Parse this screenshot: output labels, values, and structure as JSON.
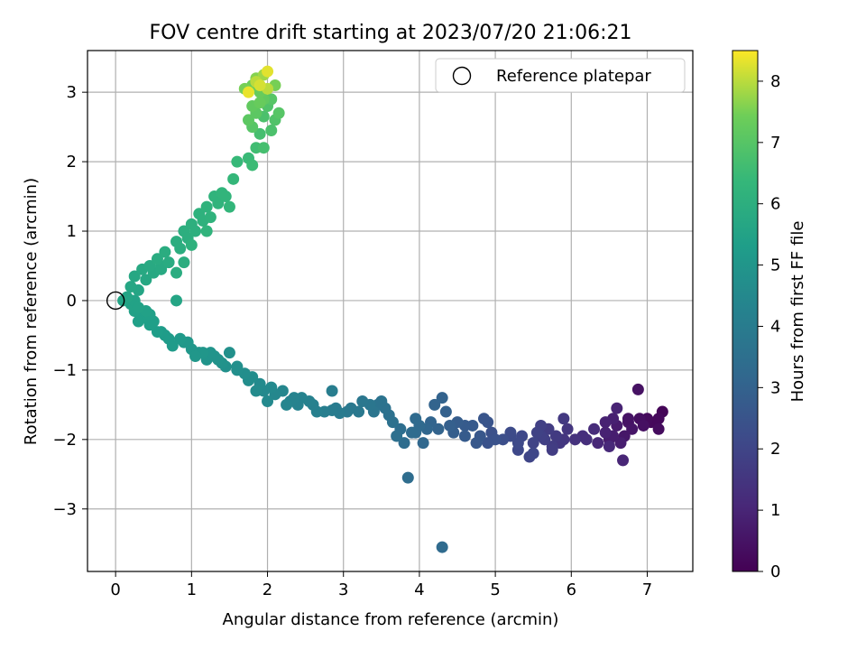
{
  "chart_data": {
    "type": "scatter",
    "title": "FOV centre drift starting at 2023/07/20 21:06:21",
    "xlabel": "Angular distance from reference (arcmin)",
    "ylabel": "Rotation from reference (arcmin)",
    "xlim": [
      -0.37,
      7.6
    ],
    "ylim": [
      -3.9,
      3.6
    ],
    "xticks": [
      0,
      1,
      2,
      3,
      4,
      5,
      6,
      7
    ],
    "yticks": [
      -3,
      -2,
      -1,
      0,
      1,
      2,
      3
    ],
    "grid": true,
    "legend": {
      "placement": "top-right",
      "entries": [
        "Reference platepar"
      ]
    },
    "colorbar": {
      "label": "Hours from first FF file",
      "range": [
        0,
        8.5
      ],
      "ticks": [
        0,
        1,
        2,
        3,
        4,
        5,
        6,
        7,
        8
      ],
      "colormap": "viridis"
    },
    "reference_point": {
      "x": 0,
      "y": 0
    },
    "series": [
      {
        "values_note": "columns: x (arcmin), y (arcmin), hours",
        "points": [
          [
            7.2,
            -1.6,
            0.1
          ],
          [
            7.15,
            -1.7,
            0.2
          ],
          [
            7.15,
            -1.85,
            0.3
          ],
          [
            6.9,
            -1.7,
            0.35
          ],
          [
            6.95,
            -1.8,
            0.4
          ],
          [
            6.88,
            -1.28,
            0.45
          ],
          [
            6.75,
            -1.75,
            0.5
          ],
          [
            6.7,
            -1.95,
            0.6
          ],
          [
            6.6,
            -1.8,
            0.7
          ],
          [
            6.5,
            -2.0,
            0.75
          ],
          [
            6.65,
            -2.05,
            0.8
          ],
          [
            6.55,
            -1.7,
            0.85
          ],
          [
            6.45,
            -1.75,
            0.9
          ],
          [
            6.6,
            -1.55,
            0.95
          ],
          [
            6.68,
            -2.3,
            1.0
          ],
          [
            6.35,
            -2.05,
            1.05
          ],
          [
            6.5,
            -2.1,
            1.1
          ],
          [
            6.3,
            -1.85,
            1.2
          ],
          [
            6.2,
            -2.0,
            1.3
          ],
          [
            6.05,
            -2.0,
            1.4
          ],
          [
            5.95,
            -1.85,
            1.5
          ],
          [
            5.85,
            -2.05,
            1.55
          ],
          [
            5.9,
            -1.7,
            1.6
          ],
          [
            5.8,
            -1.95,
            1.65
          ],
          [
            5.7,
            -1.85,
            1.7
          ],
          [
            5.75,
            -2.15,
            1.75
          ],
          [
            5.65,
            -2.0,
            1.8
          ],
          [
            5.6,
            -1.8,
            1.85
          ],
          [
            5.55,
            -1.9,
            1.9
          ],
          [
            5.5,
            -2.05,
            1.95
          ],
          [
            5.45,
            -2.25,
            2.0
          ],
          [
            5.5,
            -2.2,
            2.05
          ],
          [
            5.35,
            -1.95,
            2.1
          ],
          [
            5.3,
            -2.05,
            2.15
          ],
          [
            5.2,
            -1.95,
            2.2
          ],
          [
            5.1,
            -2.0,
            2.3
          ],
          [
            4.95,
            -1.9,
            2.4
          ],
          [
            5.0,
            -2.0,
            2.45
          ],
          [
            4.9,
            -1.75,
            2.5
          ],
          [
            4.85,
            -1.7,
            2.55
          ],
          [
            4.8,
            -1.95,
            2.6
          ],
          [
            4.75,
            -2.05,
            2.65
          ],
          [
            4.7,
            -1.8,
            2.7
          ],
          [
            4.6,
            -1.8,
            2.75
          ],
          [
            4.5,
            -1.75,
            2.8
          ],
          [
            4.4,
            -1.8,
            2.9
          ],
          [
            4.35,
            -1.6,
            2.95
          ],
          [
            4.3,
            -1.4,
            3.0
          ],
          [
            4.2,
            -1.5,
            3.05
          ],
          [
            4.15,
            -1.75,
            3.1
          ],
          [
            4.1,
            -1.85,
            3.15
          ],
          [
            4.05,
            -2.05,
            3.2
          ],
          [
            4.0,
            -1.8,
            3.25
          ],
          [
            3.95,
            -1.7,
            3.3
          ],
          [
            3.9,
            -1.9,
            3.35
          ],
          [
            3.8,
            -2.05,
            3.4
          ],
          [
            3.75,
            -1.85,
            3.45
          ],
          [
            3.7,
            -1.95,
            3.5
          ],
          [
            3.6,
            -1.65,
            3.55
          ],
          [
            3.55,
            -1.55,
            3.6
          ],
          [
            3.5,
            -1.45,
            3.65
          ],
          [
            3.4,
            -1.6,
            3.7
          ],
          [
            3.35,
            -1.5,
            3.75
          ],
          [
            3.25,
            -1.45,
            3.8
          ],
          [
            3.2,
            -1.6,
            3.85
          ],
          [
            3.05,
            -1.6,
            3.9
          ],
          [
            2.95,
            -1.62,
            3.95
          ],
          [
            2.85,
            -1.58,
            4.0
          ],
          [
            2.85,
            -1.3,
            4.05
          ],
          [
            2.75,
            -1.6,
            4.1
          ],
          [
            2.65,
            -1.6,
            4.15
          ],
          [
            2.55,
            -1.45,
            4.2
          ],
          [
            2.45,
            -1.4,
            4.25
          ],
          [
            2.35,
            -1.4,
            4.3
          ],
          [
            2.25,
            -1.5,
            4.35
          ],
          [
            2.2,
            -1.3,
            4.4
          ],
          [
            2.1,
            -1.35,
            4.45
          ],
          [
            2.0,
            -1.45,
            4.5
          ],
          [
            1.9,
            -1.2,
            4.55
          ],
          [
            1.85,
            -1.3,
            4.6
          ],
          [
            1.8,
            -1.1,
            4.65
          ],
          [
            1.7,
            -1.05,
            4.7
          ],
          [
            1.6,
            -0.95,
            4.75
          ],
          [
            1.5,
            -0.75,
            4.8
          ],
          [
            1.4,
            -0.9,
            4.85
          ],
          [
            1.3,
            -0.8,
            4.9
          ],
          [
            1.2,
            -0.85,
            4.95
          ],
          [
            1.1,
            -0.75,
            5.0
          ],
          [
            1.0,
            -0.7,
            5.05
          ],
          [
            0.95,
            -0.6,
            5.1
          ],
          [
            0.85,
            -0.55,
            5.15
          ],
          [
            0.75,
            -0.65,
            5.2
          ],
          [
            0.65,
            -0.5,
            5.25
          ],
          [
            0.55,
            -0.45,
            5.3
          ],
          [
            0.45,
            -0.35,
            5.35
          ],
          [
            0.35,
            -0.25,
            5.4
          ],
          [
            0.25,
            -0.15,
            5.45
          ],
          [
            0.2,
            -0.05,
            5.5
          ],
          [
            0.15,
            0.05,
            5.55
          ],
          [
            0.8,
            0.0,
            5.6
          ],
          [
            0.2,
            0.2,
            5.65
          ],
          [
            0.25,
            0.35,
            5.7
          ],
          [
            0.35,
            0.45,
            5.75
          ],
          [
            0.45,
            0.5,
            5.8
          ],
          [
            0.55,
            0.6,
            5.85
          ],
          [
            0.65,
            0.7,
            5.9
          ],
          [
            0.8,
            0.85,
            5.95
          ],
          [
            0.9,
            1.0,
            6.0
          ],
          [
            1.0,
            1.1,
            6.05
          ],
          [
            1.1,
            1.25,
            6.1
          ],
          [
            1.2,
            1.35,
            6.15
          ],
          [
            1.3,
            1.5,
            6.2
          ],
          [
            1.4,
            1.55,
            6.25
          ],
          [
            1.5,
            1.35,
            6.3
          ],
          [
            1.55,
            1.75,
            6.35
          ],
          [
            1.6,
            2.0,
            6.4
          ],
          [
            1.75,
            2.05,
            6.45
          ],
          [
            1.8,
            1.95,
            6.5
          ],
          [
            1.85,
            2.2,
            6.6
          ],
          [
            1.9,
            2.4,
            6.7
          ],
          [
            1.95,
            2.65,
            6.8
          ],
          [
            2.0,
            2.8,
            6.9
          ],
          [
            2.05,
            2.9,
            7.0
          ],
          [
            1.75,
            2.6,
            7.1
          ],
          [
            1.8,
            2.8,
            7.2
          ],
          [
            1.9,
            3.0,
            7.3
          ],
          [
            1.8,
            3.1,
            7.4
          ],
          [
            1.7,
            3.05,
            7.5
          ],
          [
            1.85,
            3.2,
            7.6
          ],
          [
            1.95,
            3.25,
            7.8
          ],
          [
            2.0,
            3.05,
            8.0
          ],
          [
            1.9,
            3.1,
            8.2
          ],
          [
            2.0,
            3.3,
            8.3
          ],
          [
            1.75,
            3.0,
            8.35
          ],
          [
            3.85,
            -2.55,
            3.4
          ],
          [
            4.3,
            -3.55,
            3.3
          ],
          [
            6.8,
            -1.85,
            0.55
          ],
          [
            7.0,
            -1.7,
            0.25
          ],
          [
            6.45,
            -1.9,
            0.9
          ],
          [
            5.9,
            -2.0,
            1.5
          ],
          [
            5.6,
            -1.95,
            1.85
          ],
          [
            5.2,
            -1.9,
            2.2
          ],
          [
            4.9,
            -2.05,
            2.45
          ],
          [
            4.6,
            -1.95,
            2.75
          ],
          [
            4.25,
            -1.85,
            3.05
          ],
          [
            3.65,
            -1.75,
            3.55
          ],
          [
            3.1,
            -1.55,
            3.85
          ],
          [
            2.6,
            -1.5,
            4.15
          ],
          [
            2.3,
            -1.45,
            4.3
          ],
          [
            2.05,
            -1.25,
            4.5
          ],
          [
            1.75,
            -1.15,
            4.65
          ],
          [
            1.45,
            -0.95,
            4.8
          ],
          [
            1.25,
            -0.75,
            4.95
          ],
          [
            1.05,
            -0.8,
            5.05
          ],
          [
            0.7,
            -0.55,
            5.2
          ],
          [
            0.5,
            -0.3,
            5.35
          ],
          [
            0.3,
            -0.3,
            5.4
          ],
          [
            0.4,
            -0.15,
            5.45
          ],
          [
            0.25,
            0.0,
            5.5
          ],
          [
            0.1,
            0.0,
            5.55
          ],
          [
            0.3,
            0.15,
            5.6
          ],
          [
            0.4,
            0.3,
            5.7
          ],
          [
            0.5,
            0.4,
            5.75
          ],
          [
            0.6,
            0.5,
            5.8
          ],
          [
            0.7,
            0.55,
            5.85
          ],
          [
            0.85,
            0.75,
            5.95
          ],
          [
            0.95,
            0.9,
            6.0
          ],
          [
            1.05,
            1.0,
            6.05
          ],
          [
            1.15,
            1.15,
            6.1
          ],
          [
            1.25,
            1.2,
            6.15
          ],
          [
            1.35,
            1.4,
            6.2
          ],
          [
            1.45,
            1.5,
            6.25
          ],
          [
            1.2,
            1.0,
            6.2
          ],
          [
            1.0,
            0.8,
            6.1
          ],
          [
            0.6,
            0.45,
            5.8
          ],
          [
            0.8,
            0.4,
            5.9
          ],
          [
            0.9,
            0.55,
            5.95
          ],
          [
            2.1,
            2.6,
            6.9
          ],
          [
            2.15,
            2.7,
            7.0
          ],
          [
            1.95,
            2.2,
            6.7
          ],
          [
            2.05,
            2.45,
            6.8
          ],
          [
            1.85,
            2.7,
            7.1
          ],
          [
            1.95,
            2.9,
            7.2
          ],
          [
            2.1,
            3.1,
            7.5
          ],
          [
            1.85,
            3.15,
            8.0
          ],
          [
            1.8,
            2.5,
            7.0
          ],
          [
            1.9,
            2.85,
            7.3
          ],
          [
            5.3,
            -2.15,
            2.1
          ],
          [
            5.75,
            -2.1,
            1.7
          ],
          [
            6.15,
            -1.95,
            1.3
          ],
          [
            6.55,
            -1.95,
            0.8
          ],
          [
            6.75,
            -1.7,
            0.5
          ],
          [
            7.05,
            -1.75,
            0.2
          ],
          [
            4.45,
            -1.9,
            2.85
          ],
          [
            3.95,
            -1.9,
            3.3
          ],
          [
            3.45,
            -1.5,
            3.65
          ],
          [
            2.9,
            -1.55,
            3.95
          ],
          [
            2.4,
            -1.5,
            4.25
          ],
          [
            1.95,
            -1.3,
            4.5
          ],
          [
            1.6,
            -1.0,
            4.75
          ],
          [
            1.35,
            -0.85,
            4.9
          ],
          [
            1.15,
            -0.75,
            5.0
          ],
          [
            0.9,
            -0.6,
            5.1
          ],
          [
            0.6,
            -0.45,
            5.25
          ],
          [
            0.45,
            -0.2,
            5.4
          ],
          [
            0.3,
            -0.1,
            5.5
          ]
        ]
      }
    ]
  }
}
